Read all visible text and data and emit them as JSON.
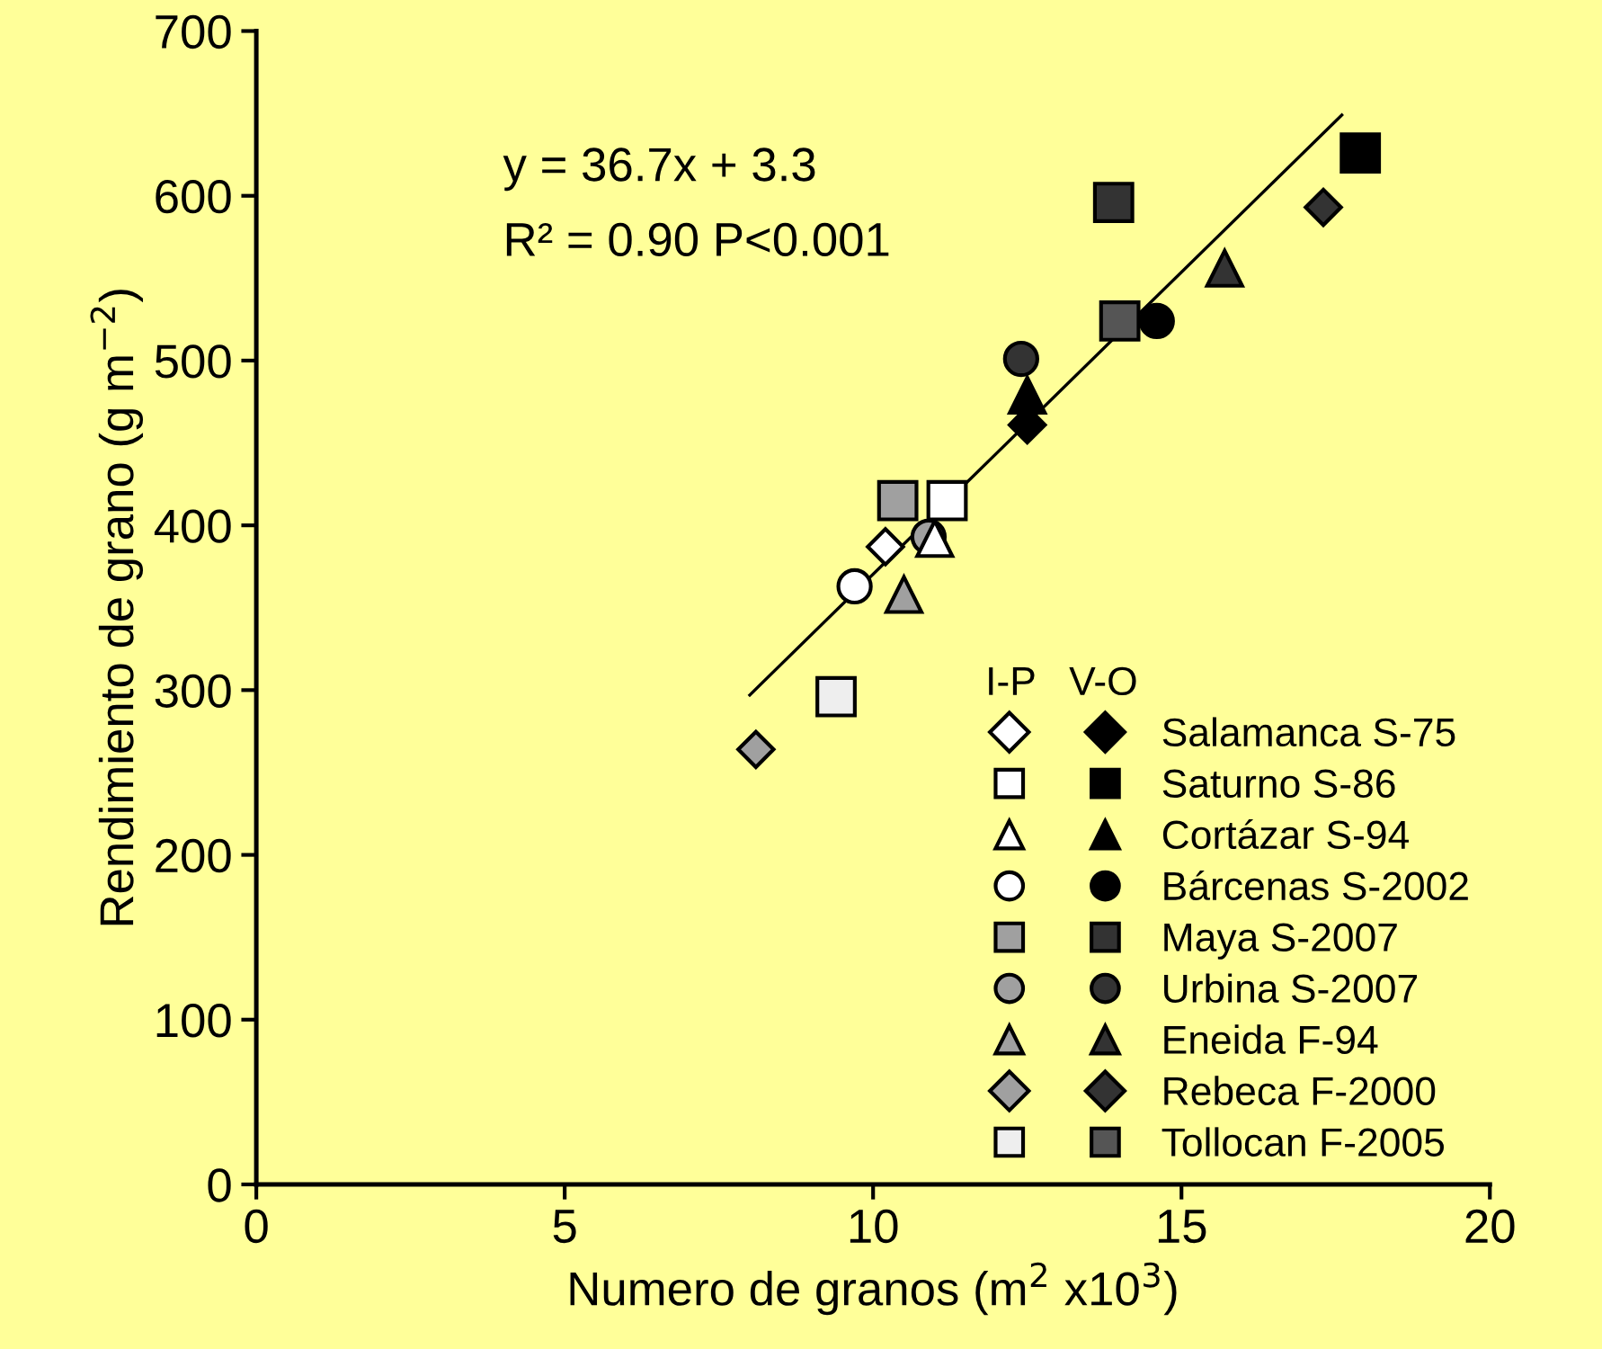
{
  "chart_data": {
    "type": "scatter",
    "xlabel": "Numero de granos (m$^{2}$ x10$^{3}$)",
    "ylabel": "Rendimiento de grano (g m$^{−2}$)",
    "xlim": [
      0,
      20
    ],
    "xticks": [
      0,
      5,
      10,
      15,
      20
    ],
    "ylim": [
      0,
      700
    ],
    "yticks": [
      0,
      100,
      200,
      300,
      400,
      500,
      600,
      700
    ],
    "grid": false,
    "legend": "bottom right",
    "legend_title": "I-P   V-O",
    "annotations": [
      "y = 36.7x + 3.3",
      "R² = 0.90 P<0.001"
    ],
    "series": [
      {
        "marker": "diamond",
        "color": "#ffffff",
        "x": [
          10.2
        ],
        "values": [
          387
        ]
      },
      {
        "marker": "square",
        "color": "#ffffff",
        "x": [
          11.2
        ],
        "values": [
          415
        ]
      },
      {
        "marker": "triangle",
        "color": "#ffffff",
        "x": [
          11.0
        ],
        "values": [
          392
        ]
      },
      {
        "marker": "circle",
        "color": "#ffffff",
        "x": [
          9.7
        ],
        "values": [
          363
        ]
      },
      {
        "marker": "square",
        "color": "#a0a0a0",
        "x": [
          10.4
        ],
        "values": [
          415
        ]
      },
      {
        "marker": "circle",
        "color": "#a0a0a0",
        "x": [
          10.9
        ],
        "values": [
          393
        ]
      },
      {
        "marker": "triangle",
        "color": "#a0a0a0",
        "x": [
          10.5
        ],
        "values": [
          358
        ]
      },
      {
        "marker": "diamond",
        "color": "#a0a0a0",
        "x": [
          8.1
        ],
        "values": [
          264
        ]
      },
      {
        "marker": "square",
        "color": "#eeeeee",
        "x": [
          9.4
        ],
        "values": [
          296
        ]
      },
      {
        "name": "Salamanca S-75",
        "marker": "diamond",
        "color": "#000000",
        "x": [
          12.5
        ],
        "values": [
          461
        ]
      },
      {
        "name": "Saturno S-86",
        "marker": "square",
        "color": "#000000",
        "x": [
          17.9
        ],
        "values": [
          626
        ]
      },
      {
        "name": "Cortázar S-94",
        "marker": "triangle",
        "color": "#000000",
        "x": [
          12.5
        ],
        "values": [
          479
        ]
      },
      {
        "name": "Bárcenas S-2002",
        "marker": "circle",
        "color": "#000000",
        "x": [
          14.6
        ],
        "values": [
          524
        ]
      },
      {
        "name": "Maya S-2007",
        "marker": "square",
        "color": "#333333",
        "x": [
          13.9
        ],
        "values": [
          596
        ]
      },
      {
        "name": "Urbina S-2007",
        "marker": "circle",
        "color": "#333333",
        "x": [
          12.4
        ],
        "values": [
          501
        ]
      },
      {
        "name": "Eneida F-94",
        "marker": "triangle",
        "color": "#333333",
        "x": [
          15.7
        ],
        "values": [
          556
        ]
      },
      {
        "name": "Rebeca F-2000",
        "marker": "diamond",
        "color": "#333333",
        "x": [
          17.3
        ],
        "values": [
          593
        ]
      },
      {
        "name": "Tollocan F-2005",
        "marker": "square",
        "color": "#555555",
        "x": [
          14.0
        ],
        "values": [
          524
        ]
      },
      {
        "type": "line",
        "marker": "none",
        "color": "#000000",
        "x": [
          8.0,
          17.6
        ],
        "values": [
          297,
          649
        ]
      }
    ]
  }
}
